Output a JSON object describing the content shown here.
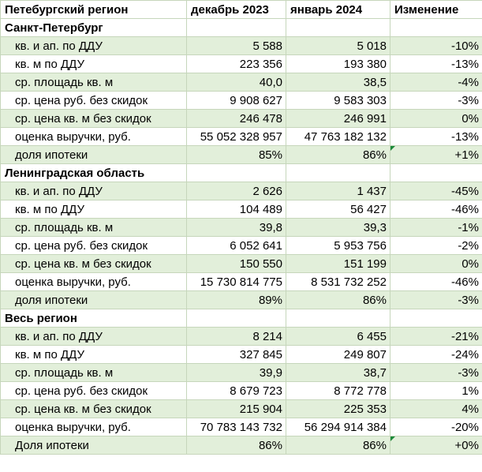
{
  "header": {
    "region": "Петебургский регион",
    "dec": "декабрь 2023",
    "jan": "январь 2024",
    "change": "Изменение"
  },
  "sections": [
    {
      "title": "Санкт-Петербург",
      "rows": [
        {
          "label": "кв. и ап. по ДДУ",
          "dec": "5 588",
          "jan": "5 018",
          "change": "-10%"
        },
        {
          "label": "кв. м по ДДУ",
          "dec": "223 356",
          "jan": "193 380",
          "change": "-13%"
        },
        {
          "label": "ср. площадь кв. м",
          "dec": "40,0",
          "jan": "38,5",
          "change": "-4%"
        },
        {
          "label": "ср. цена руб. без скидок",
          "dec": "9 908 627",
          "jan": "9 583 303",
          "change": "-3%"
        },
        {
          "label": "ср. цена кв. м без скидок",
          "dec": "246 478",
          "jan": "246 991",
          "change": "0%"
        },
        {
          "label": "оценка выручки, руб.",
          "dec": "55 052 328 957",
          "jan": "47 763 182 132",
          "change": "-13%"
        },
        {
          "label": "доля ипотеки",
          "dec": "85%",
          "jan": "86%",
          "change": "+1%"
        }
      ]
    },
    {
      "title": "Ленинградская область",
      "rows": [
        {
          "label": "кв. и ап. по ДДУ",
          "dec": "2 626",
          "jan": "1 437",
          "change": "-45%"
        },
        {
          "label": "кв. м по ДДУ",
          "dec": "104 489",
          "jan": "56 427",
          "change": "-46%"
        },
        {
          "label": "ср. площадь кв. м",
          "dec": "39,8",
          "jan": "39,3",
          "change": "-1%"
        },
        {
          "label": "ср. цена руб. без скидок",
          "dec": "6 052 641",
          "jan": "5 953 756",
          "change": "-2%"
        },
        {
          "label": "ср. цена кв. м без скидок",
          "dec": "150 550",
          "jan": "151 199",
          "change": "0%"
        },
        {
          "label": "оценка выручки, руб.",
          "dec": "15 730 814 775",
          "jan": "8 531 732 252",
          "change": "-46%"
        },
        {
          "label": "доля ипотеки",
          "dec": "89%",
          "jan": "86%",
          "change": "-3%"
        }
      ]
    },
    {
      "title": "Весь регион",
      "rows": [
        {
          "label": "кв. и ап. по ДДУ",
          "dec": "8 214",
          "jan": "6 455",
          "change": "-21%"
        },
        {
          "label": "кв. м по ДДУ",
          "dec": "327 845",
          "jan": "249 807",
          "change": "-24%"
        },
        {
          "label": "ср. площадь кв. м",
          "dec": "39,9",
          "jan": "38,7",
          "change": "-3%"
        },
        {
          "label": "ср. цена руб. без скидок",
          "dec": "8 679 723",
          "jan": "8 772 778",
          "change": "1%"
        },
        {
          "label": "ср. цена кв. м без скидок",
          "dec": "215 904",
          "jan": "225 353",
          "change": "4%"
        },
        {
          "label": "оценка выручки, руб.",
          "dec": "70 783 143 732",
          "jan": "56 294 914 384",
          "change": "-20%"
        },
        {
          "label": "Доля ипотеки",
          "dec": "86%",
          "jan": "86%",
          "change": "+0%"
        }
      ]
    }
  ],
  "colors": {
    "row_shade": "#e2efda",
    "gridline": "#c6d6bb",
    "flag": "#1d8a3a"
  }
}
